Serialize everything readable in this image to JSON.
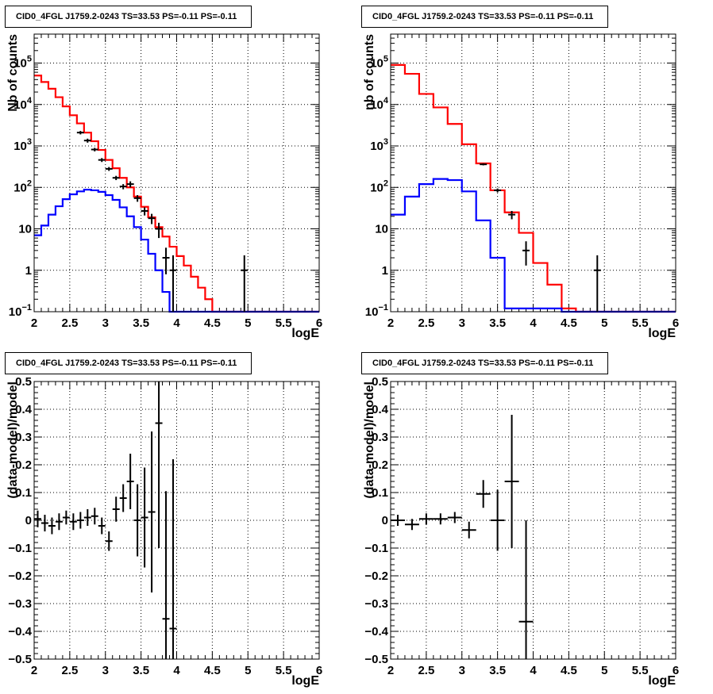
{
  "colors": {
    "data": "#000000",
    "total_model": "#ff0000",
    "component_model": "#0000ff",
    "grid": "#000000"
  },
  "chart_data": [
    {
      "id": "tl",
      "type": "line",
      "title": "CID0_4FGL J1759.2-0243 TS=33.53 PS=-0.11 PS=-0.11",
      "xlabel": "logE",
      "ylabel": "Nb of counts",
      "xlim": [
        2,
        6
      ],
      "ylim": [
        0.1,
        500000
      ],
      "yscale": "log",
      "grid": true,
      "x_ticks": [
        "2",
        "2.5",
        "3",
        "3.5",
        "4",
        "4.5",
        "5",
        "5.5",
        "6"
      ],
      "y_ticks": [
        "10^-1",
        "1",
        "10",
        "10^2",
        "10^3",
        "10^4",
        "10^5"
      ],
      "bin_edges": [
        2.0,
        2.1,
        2.2,
        2.3,
        2.4,
        2.5,
        2.6,
        2.7,
        2.8,
        2.9,
        3.0,
        3.1,
        3.2,
        3.3,
        3.4,
        3.5,
        3.6,
        3.7,
        3.8,
        3.9,
        4.0,
        4.1,
        4.2,
        4.3,
        4.4,
        4.5,
        4.6,
        4.7,
        4.8,
        4.9,
        5.0,
        5.1,
        5.2,
        5.3,
        5.4,
        5.5,
        5.6,
        5.7,
        5.8,
        5.9,
        6.0
      ],
      "series": [
        {
          "role": "total_model",
          "values": [
            50000,
            35000,
            24000,
            15000,
            9000,
            5500,
            3500,
            2100,
            1300,
            800,
            460,
            290,
            170,
            100,
            60,
            34,
            19,
            11,
            6.5,
            3.7,
            2.2,
            1.3,
            0.7,
            0.38,
            0.2,
            0.1,
            0.1,
            0.1,
            0.1,
            0.1,
            0.1,
            0.1,
            0.1,
            0.1,
            0.1,
            0.1,
            0.1,
            0.1,
            0.1,
            0.1
          ]
        },
        {
          "role": "component_model",
          "values": [
            7,
            12,
            22,
            35,
            52,
            68,
            80,
            88,
            85,
            78,
            65,
            50,
            33,
            20,
            11,
            5.5,
            2.5,
            1.0,
            0.3,
            0.1,
            0.1,
            0.1,
            0.1,
            0.1,
            0.1,
            0.1,
            0.1,
            0.1,
            0.1,
            0.1,
            0.1,
            0.1,
            0.1,
            0.1,
            0.1,
            0.1,
            0.1,
            0.1,
            0.1,
            0.1
          ]
        },
        {
          "role": "data",
          "points": [
            {
              "x": 2.65,
              "y": 2100,
              "lo": 1900,
              "hi": 2300
            },
            {
              "x": 2.75,
              "y": 1350,
              "lo": 1200,
              "hi": 1500
            },
            {
              "x": 2.85,
              "y": 820,
              "lo": 740,
              "hi": 900
            },
            {
              "x": 2.95,
              "y": 460,
              "lo": 410,
              "hi": 510
            },
            {
              "x": 3.05,
              "y": 280,
              "lo": 250,
              "hi": 310
            },
            {
              "x": 3.15,
              "y": 170,
              "lo": 150,
              "hi": 190
            },
            {
              "x": 3.25,
              "y": 105,
              "lo": 90,
              "hi": 120
            },
            {
              "x": 3.35,
              "y": 120,
              "lo": 100,
              "hi": 140
            },
            {
              "x": 3.45,
              "y": 55,
              "lo": 45,
              "hi": 65
            },
            {
              "x": 3.55,
              "y": 27,
              "lo": 21,
              "hi": 33
            },
            {
              "x": 3.65,
              "y": 18,
              "lo": 13,
              "hi": 23
            },
            {
              "x": 3.75,
              "y": 10,
              "lo": 6,
              "hi": 14
            },
            {
              "x": 3.85,
              "y": 2,
              "lo": 0.8,
              "hi": 3.5
            },
            {
              "x": 3.95,
              "y": 1,
              "lo": 0.1,
              "hi": 2.3
            },
            {
              "x": 4.95,
              "y": 1,
              "lo": 0.1,
              "hi": 2.3
            }
          ]
        }
      ]
    },
    {
      "id": "tr",
      "type": "line",
      "title": "CID0_4FGL J1759.2-0243 TS=33.53 PS=-0.11 PS=-0.11",
      "xlabel": "logE",
      "ylabel": "nb of counts",
      "xlim": [
        2,
        6
      ],
      "ylim": [
        0.1,
        500000
      ],
      "yscale": "log",
      "grid": true,
      "x_ticks": [
        "2",
        "2.5",
        "3",
        "3.5",
        "4",
        "4.5",
        "5",
        "5.5",
        "6"
      ],
      "y_ticks": [
        "10^-1",
        "1",
        "10",
        "10^2",
        "10^3",
        "10^4",
        "10^5"
      ],
      "bin_edges": [
        2.0,
        2.2,
        2.4,
        2.6,
        2.8,
        3.0,
        3.2,
        3.4,
        3.6,
        3.8,
        4.0,
        4.2,
        4.4,
        4.6,
        4.8,
        5.0,
        5.2,
        5.4,
        5.6,
        5.8,
        6.0
      ],
      "series": [
        {
          "role": "total_model",
          "values": [
            90000,
            55000,
            18000,
            8500,
            3400,
            1100,
            380,
            85,
            25,
            8,
            1.5,
            0.45,
            0.12,
            0.1,
            0.1,
            0.1,
            0.1,
            0.1,
            0.1,
            0.1
          ]
        },
        {
          "role": "component_model",
          "values": [
            22,
            60,
            120,
            160,
            150,
            80,
            16,
            2,
            0.12,
            0.12,
            0.12,
            0.12,
            0.1,
            0.1,
            0.1,
            0.1,
            0.1,
            0.1,
            0.1,
            0.1
          ]
        },
        {
          "role": "data",
          "points": [
            {
              "x": 3.3,
              "y": 360,
              "lo": 340,
              "hi": 380
            },
            {
              "x": 3.5,
              "y": 85,
              "lo": 76,
              "hi": 94
            },
            {
              "x": 3.7,
              "y": 22,
              "lo": 17,
              "hi": 27
            },
            {
              "x": 3.9,
              "y": 3,
              "lo": 1.3,
              "hi": 5
            },
            {
              "x": 4.9,
              "y": 1,
              "lo": 0.1,
              "hi": 2.3
            }
          ]
        }
      ]
    },
    {
      "id": "bl",
      "type": "scatter",
      "title": "CID0_4FGL J1759.2-0243 TS=33.53 PS=-0.11 PS=-0.11",
      "xlabel": "logE",
      "ylabel": "(data-model)/model",
      "xlim": [
        2,
        6
      ],
      "ylim": [
        -0.5,
        0.5
      ],
      "yscale": "linear",
      "grid": true,
      "x_ticks": [
        "2",
        "2.5",
        "3",
        "3.5",
        "4",
        "4.5",
        "5",
        "5.5",
        "6"
      ],
      "y_ticks": [
        "-0.5",
        "-0.4",
        "-0.3",
        "-0.2",
        "-0.1",
        "0",
        "0.1",
        "0.2",
        "0.3",
        "0.4",
        "0.5"
      ],
      "series": [
        {
          "role": "data",
          "points": [
            {
              "x": 2.05,
              "y": 0.005,
              "err": 0.03,
              "xerr": 0.05
            },
            {
              "x": 2.15,
              "y": -0.01,
              "err": 0.03,
              "xerr": 0.05
            },
            {
              "x": 2.25,
              "y": -0.02,
              "err": 0.03,
              "xerr": 0.05
            },
            {
              "x": 2.35,
              "y": -0.005,
              "err": 0.03,
              "xerr": 0.05
            },
            {
              "x": 2.45,
              "y": 0.01,
              "err": 0.025,
              "xerr": 0.05
            },
            {
              "x": 2.55,
              "y": -0.005,
              "err": 0.03,
              "xerr": 0.05
            },
            {
              "x": 2.65,
              "y": 0.0,
              "err": 0.03,
              "xerr": 0.05
            },
            {
              "x": 2.75,
              "y": 0.01,
              "err": 0.03,
              "xerr": 0.05
            },
            {
              "x": 2.85,
              "y": 0.015,
              "err": 0.03,
              "xerr": 0.05
            },
            {
              "x": 2.95,
              "y": -0.02,
              "err": 0.03,
              "xerr": 0.05
            },
            {
              "x": 3.05,
              "y": -0.075,
              "err": 0.035,
              "xerr": 0.05
            },
            {
              "x": 3.15,
              "y": 0.04,
              "err": 0.045,
              "xerr": 0.05
            },
            {
              "x": 3.25,
              "y": 0.08,
              "err": 0.05,
              "xerr": 0.05
            },
            {
              "x": 3.35,
              "y": 0.14,
              "err": 0.1,
              "xerr": 0.05
            },
            {
              "x": 3.45,
              "y": 0.0,
              "err": 0.13,
              "xerr": 0.05
            },
            {
              "x": 3.55,
              "y": 0.01,
              "err": 0.18,
              "xerr": 0.05
            },
            {
              "x": 3.65,
              "y": 0.03,
              "err": 0.29,
              "xerr": 0.05
            },
            {
              "x": 3.75,
              "y": 0.35,
              "err": 0.45,
              "xerr": 0.05
            },
            {
              "x": 3.85,
              "y": -0.355,
              "err": 0.46,
              "xerr": 0.05
            },
            {
              "x": 3.95,
              "y": -0.39,
              "err": 0.61,
              "xerr": 0.05
            }
          ]
        }
      ]
    },
    {
      "id": "br",
      "type": "scatter",
      "title": "CID0_4FGL J1759.2-0243 TS=33.53 PS=-0.11 PS=-0.11",
      "xlabel": "logE",
      "ylabel": "(data-model)/model",
      "xlim": [
        2,
        6
      ],
      "ylim": [
        -0.5,
        0.5
      ],
      "yscale": "linear",
      "grid": true,
      "x_ticks": [
        "2",
        "2.5",
        "3",
        "3.5",
        "4",
        "4.5",
        "5",
        "5.5",
        "6"
      ],
      "y_ticks": [
        "-0.5",
        "-0.4",
        "-0.3",
        "-0.2",
        "-0.1",
        "0",
        "0.1",
        "0.2",
        "0.3",
        "0.4",
        "0.5"
      ],
      "series": [
        {
          "role": "data",
          "points": [
            {
              "x": 2.1,
              "y": 0.0,
              "err": 0.02,
              "xerr": 0.1
            },
            {
              "x": 2.3,
              "y": -0.015,
              "err": 0.02,
              "xerr": 0.1
            },
            {
              "x": 2.5,
              "y": 0.005,
              "err": 0.02,
              "xerr": 0.1
            },
            {
              "x": 2.7,
              "y": 0.005,
              "err": 0.02,
              "xerr": 0.1
            },
            {
              "x": 2.9,
              "y": 0.01,
              "err": 0.02,
              "xerr": 0.1
            },
            {
              "x": 3.1,
              "y": -0.035,
              "err": 0.03,
              "xerr": 0.1
            },
            {
              "x": 3.3,
              "y": 0.095,
              "err": 0.05,
              "xerr": 0.1
            },
            {
              "x": 3.5,
              "y": 0.0,
              "err": 0.11,
              "xerr": 0.1
            },
            {
              "x": 3.7,
              "y": 0.14,
              "err": 0.24,
              "xerr": 0.1
            },
            {
              "x": 3.9,
              "y": -0.365,
              "err": 0.365,
              "xerr": 0.1
            }
          ]
        }
      ]
    }
  ]
}
